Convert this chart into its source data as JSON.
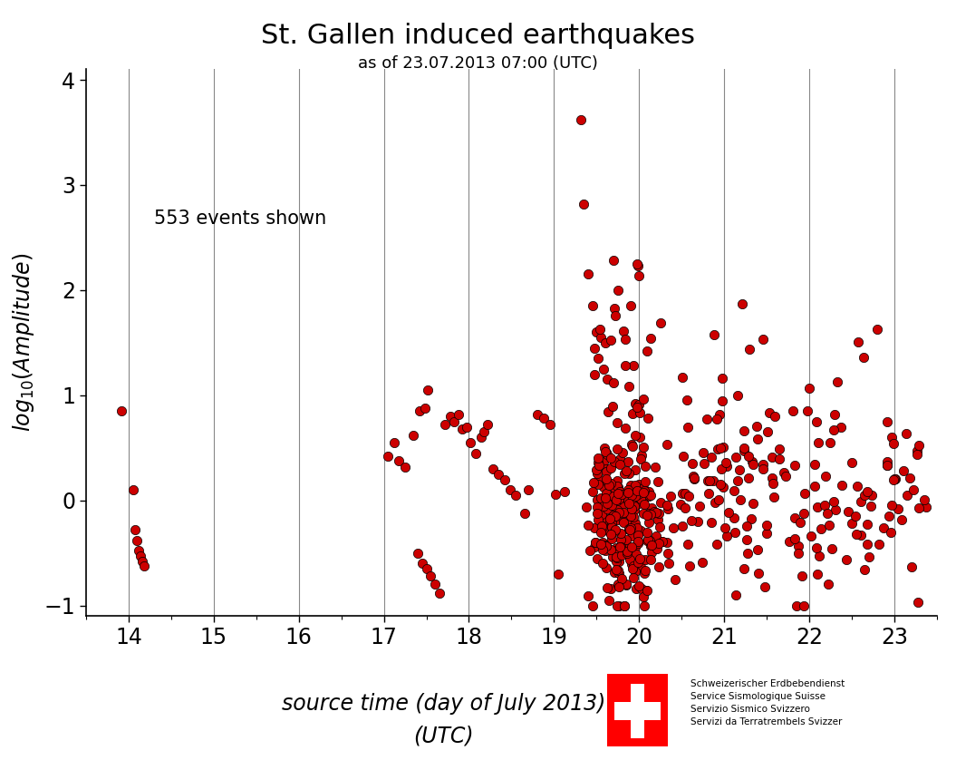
{
  "title": "St. Gallen induced earthquakes",
  "subtitle": "as of 23.07.2013 07:00 (UTC)",
  "xlabel_line1": "source time (day of July 2013)",
  "xlabel_line2": "(UTC)",
  "ylabel": "log₁₀(Amplitude)",
  "annotation": "553 events shown",
  "xlim": [
    13.5,
    23.5
  ],
  "ylim": [
    -1.1,
    4.1
  ],
  "xticks": [
    14,
    15,
    16,
    17,
    18,
    19,
    20,
    21,
    22,
    23
  ],
  "yticks": [
    -1,
    0,
    1,
    2,
    3,
    4
  ],
  "dot_color": "#cc0000",
  "dot_edge_color": "#000000",
  "dot_size": 55,
  "background": "#ffffff",
  "vline_color": "#888888",
  "vline_positions": [
    14,
    15,
    16,
    17,
    18,
    19,
    20,
    21,
    22,
    23
  ],
  "logo_text": "Schweizerischer Erdbebendienst\nService Sismologique Suisse\nServizio Sismico Svizzero\nServizi da Terratrembels Svizzer"
}
